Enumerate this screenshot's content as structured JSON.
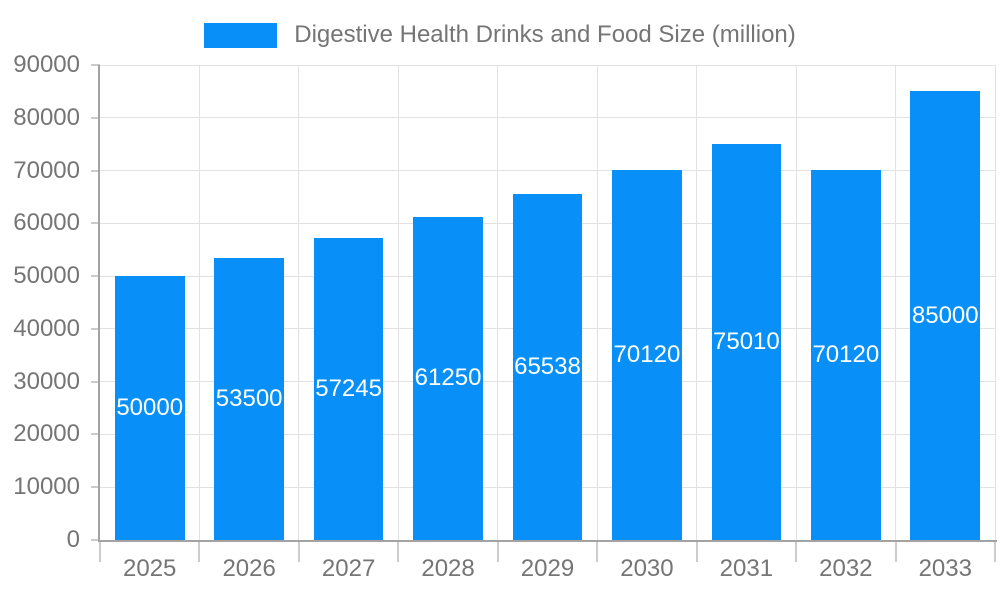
{
  "chart_data": {
    "type": "bar",
    "title": "Digestive Health Drinks and Food Size (million)",
    "categories": [
      "2025",
      "2026",
      "2027",
      "2028",
      "2029",
      "2030",
      "2031",
      "2032",
      "2033"
    ],
    "values": [
      50000,
      53500,
      57245,
      61250,
      65538,
      70120,
      75010,
      70120,
      85000
    ],
    "xlabel": "",
    "ylabel": "",
    "ylim": [
      0,
      90000
    ],
    "ytick_step": 10000,
    "yticks": [
      0,
      10000,
      20000,
      30000,
      40000,
      50000,
      60000,
      70000,
      80000,
      90000
    ],
    "grid": true,
    "legend_position": "top",
    "bar_labels_visible": true,
    "colors": {
      "bar": "#0890f8",
      "bar_label_text": "#ffffff",
      "axis_text": "#757575",
      "axis_line": "#a3a3a3",
      "gridline": "#e2e2e2",
      "tick": "#cccccc",
      "background": "#ffffff"
    }
  }
}
